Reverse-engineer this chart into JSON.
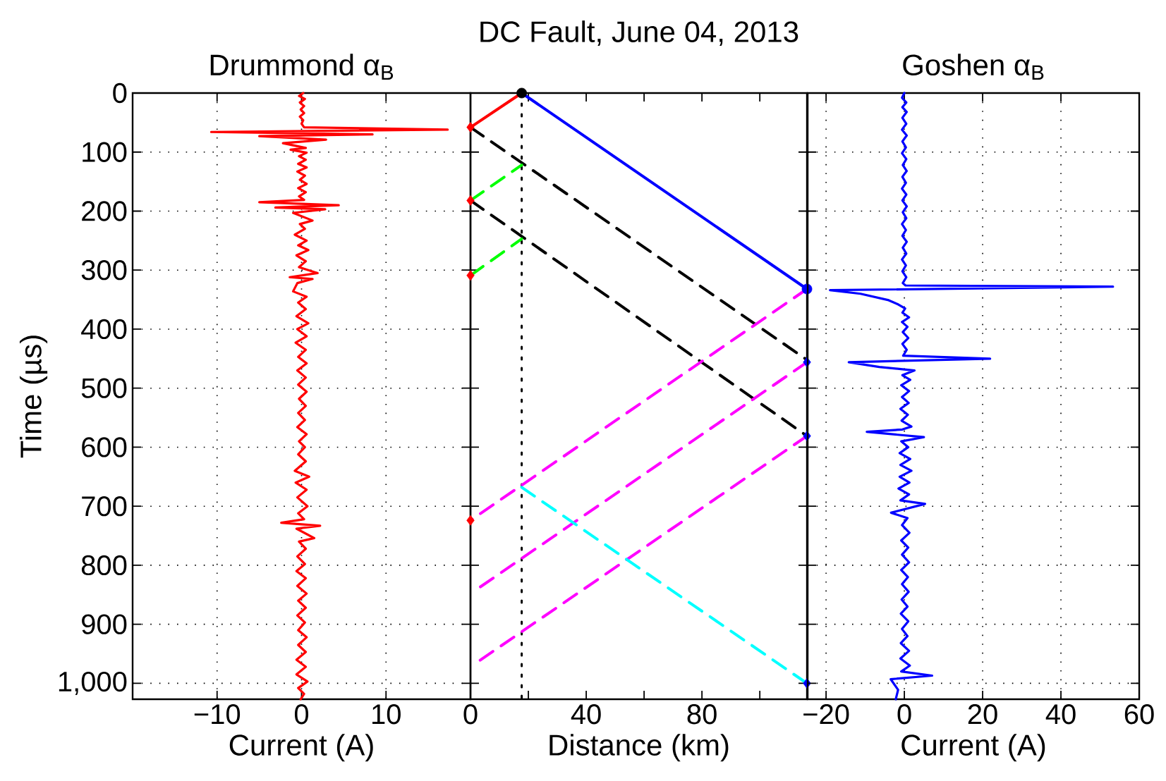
{
  "chart_data": [
    {
      "type": "line",
      "title": "Drummond α$_{B}$",
      "xlabel": "Current (A)",
      "ylabel": "Time (µs)",
      "xlim": [
        -20,
        20
      ],
      "xticks": [
        {
          "value": -10,
          "label": "−10"
        },
        0,
        10
      ],
      "ylim": [
        1027,
        0
      ],
      "yticks": [
        0,
        100,
        200,
        300,
        400,
        500,
        600,
        700,
        800,
        900,
        {
          "value": 1000,
          "label": "1,000"
        }
      ],
      "grid": true,
      "series": [
        {
          "color": "#ff0000",
          "x": [
            0.2,
            -0.3,
            0.4,
            -0.2,
            0.3,
            -0.1,
            0.3,
            -0.2,
            0.2,
            0,
            0.3,
            17.3,
            -10.7,
            8.4,
            -5,
            2.9,
            -2.2,
            0.5,
            -1.3,
            0.6,
            -0.3,
            0.5,
            -0.4,
            0.6,
            -0.5,
            0.4,
            -0.2,
            0.6,
            -0.4,
            0.5,
            -0.3,
            0.3,
            -5.0,
            4.4,
            -3.1,
            2.8,
            -1,
            1.3,
            -0.2,
            0.4,
            -0.8,
            0.6,
            -0.4,
            0.8,
            -0.6,
            0.5,
            -0.3,
            1.9,
            -1.4,
            1.3,
            -0.5,
            -1.0,
            0.6,
            -0.4,
            0.5,
            -0.6,
            0.8,
            -0.5,
            0.6,
            -0.7,
            0.5,
            -0.4,
            0.6,
            -0.5,
            0.5,
            -0.4,
            0.6,
            -0.3,
            0.5,
            -0.4,
            0.4,
            -0.5,
            0.6,
            -0.3,
            0.4,
            -0.4,
            0.5,
            -0.8,
            0.9,
            -0.7,
            0.6,
            -0.5,
            0.7,
            -0.4,
            0.3,
            -2.4,
            2.2,
            -0.6,
            1.5,
            -0.3,
            0.5,
            -0.5,
            0.4,
            -0.6,
            0.5,
            -0.5,
            0.6,
            -0.4,
            0.5,
            -0.5,
            0.4,
            -0.4,
            0.6,
            -0.4,
            0.5,
            -0.6,
            0.5,
            -0.6,
            0.7,
            -0.4,
            0.3,
            -0.1
          ],
          "values": [
            0,
            5,
            10,
            16,
            22,
            28,
            34,
            40,
            46,
            52,
            58,
            62,
            66,
            70,
            73,
            79,
            85,
            93,
            96,
            101,
            107,
            113,
            120,
            126,
            133,
            140,
            147,
            154,
            161,
            168,
            175,
            181,
            185,
            190,
            194,
            197,
            203,
            216,
            222,
            230,
            240,
            250,
            258,
            266,
            275,
            285,
            295,
            305,
            312,
            315,
            322,
            336,
            345,
            355,
            366,
            378,
            390,
            400,
            412,
            423,
            435,
            447,
            458,
            470,
            482,
            494,
            506,
            518,
            530,
            542,
            554,
            566,
            578,
            590,
            600,
            612,
            624,
            640,
            650,
            660,
            672,
            685,
            700,
            712,
            722,
            728,
            733,
            738,
            754,
            760,
            772,
            785,
            798,
            810,
            822,
            835,
            848,
            860,
            872,
            885,
            897,
            910,
            922,
            935,
            947,
            960,
            972,
            985,
            997,
            1008,
            1018,
            1027
          ]
        }
      ]
    },
    {
      "type": "line",
      "title": "DC Fault, June 04, 2013",
      "xlabel": "Distance (km)",
      "xlim": [
        0,
        116.3
      ],
      "xticks": [
        0,
        {
          "value": 20,
          "label": null
        },
        40,
        {
          "value": 60,
          "label": null
        },
        80,
        {
          "value": 100,
          "label": null
        }
      ],
      "ylim": [
        1027,
        0
      ],
      "yticks": [
        0,
        100,
        200,
        300,
        400,
        500,
        600,
        700,
        800,
        900,
        1000
      ],
      "tick_labels": "x",
      "ref_lines": [
        {
          "axis": "x",
          "value": 17.7,
          "color": "#000000",
          "line_style": "dotted"
        }
      ],
      "series": [
        {
          "color": "#ff0000",
          "line_style": "solid",
          "x": [
            17.7,
            0
          ],
          "values": [
            0,
            58
          ]
        },
        {
          "color": "#0000ff",
          "line_style": "solid",
          "x": [
            17.7,
            116.3
          ],
          "values": [
            0,
            332
          ]
        },
        {
          "color": "#000000",
          "line_style": "dashed",
          "x": [
            0,
            116.3
          ],
          "values": [
            58,
            452
          ]
        },
        {
          "color": "#00ff00",
          "line_style": "dashed",
          "x": [
            0,
            17.7
          ],
          "values": [
            182,
            122
          ]
        },
        {
          "color": "#000000",
          "line_style": "dashed",
          "x": [
            0,
            116.3
          ],
          "values": [
            182,
            581
          ]
        },
        {
          "color": "#00ff00",
          "line_style": "dashed",
          "x": [
            0,
            17.7
          ],
          "values": [
            309,
            247
          ]
        },
        {
          "color": "#ff00ff",
          "line_style": "dashed",
          "x": [
            116.3,
            0
          ],
          "values": [
            332,
            724
          ]
        },
        {
          "color": "#ff00ff",
          "line_style": "dashed",
          "x": [
            116.3,
            3
          ],
          "values": [
            456,
            838
          ]
        },
        {
          "color": "#ff00ff",
          "line_style": "dashed",
          "x": [
            116.3,
            3
          ],
          "values": [
            581,
            962
          ]
        },
        {
          "color": "#00ffff",
          "line_style": "dashed",
          "x": [
            17.7,
            116.3
          ],
          "values": [
            668,
            1000
          ]
        },
        {
          "type": "scatter",
          "marker": "circle",
          "color": "#000000",
          "x": [
            17.7
          ],
          "values": [
            0
          ]
        },
        {
          "type": "scatter",
          "marker": "circle",
          "color": "#0000ff",
          "x": [
            116.3
          ],
          "values": [
            332
          ]
        },
        {
          "type": "scatter",
          "marker": "diamond",
          "color": "#0000ff",
          "x": [
            116.3,
            116.3,
            116.3
          ],
          "values": [
            456,
            581,
            1000
          ]
        },
        {
          "type": "scatter",
          "marker": "diamond",
          "color": "#ff0000",
          "x": [
            0,
            0,
            0,
            0
          ],
          "values": [
            58,
            182,
            309,
            724
          ]
        }
      ]
    },
    {
      "type": "line",
      "title": "Goshen α$_{B}$",
      "xlabel": "Current (A)",
      "xlim": [
        -24.7,
        60
      ],
      "xticks": [
        {
          "value": -20,
          "label": "−20"
        },
        0,
        20,
        40,
        60
      ],
      "ylim": [
        1027,
        0
      ],
      "yticks": [
        0,
        100,
        200,
        300,
        400,
        500,
        600,
        700,
        800,
        900,
        1000
      ],
      "grid": true,
      "tick_labels": "x",
      "series": [
        {
          "color": "#0000ff",
          "x": [
            0,
            -0.6,
            0.5,
            -0.5,
            0.6,
            -0.5,
            0.5,
            -0.6,
            0.6,
            -0.5,
            0.4,
            -0.6,
            0.5,
            -0.4,
            0.6,
            -0.5,
            0.4,
            -0.6,
            0.5,
            -0.5,
            0.6,
            -0.4,
            0.5,
            -0.6,
            0.4,
            -0.5,
            0.6,
            -0.4,
            0.5,
            -0.6,
            0.4,
            -0.5,
            0.5,
            -0.4,
            0.3,
            53.3,
            -19,
            -11.2,
            -4,
            -1.6,
            0.2,
            -0.5,
            1.2,
            -0.6,
            0.8,
            -0.4,
            1.0,
            -0.5,
            0.6,
            -0.3,
            21.9,
            -14.2,
            -6.4,
            2.6,
            -0.5,
            1.5,
            -0.8,
            1.2,
            -0.6,
            1.1,
            -1.0,
            0.9,
            -0.7,
            1.8,
            -0.5,
            -9.6,
            5.0,
            -0.8,
            1.0,
            -1.2,
            1.5,
            -1.0,
            1.8,
            -1.2,
            1.3,
            -1.5,
            1.2,
            -1.0,
            5.3,
            -3.4,
            0.8,
            -0.6,
            1.3,
            -0.8,
            1.0,
            -0.6,
            1.2,
            -0.8,
            0.9,
            -0.6,
            1.1,
            -0.7,
            0.8,
            -0.9,
            1.0,
            -0.6,
            0.8,
            -0.9,
            1.2,
            -1.0,
            1.4,
            -0.8,
            7.1,
            -3.5,
            -1.6,
            -2.2
          ],
          "values": [
            0,
            8,
            16,
            24,
            32,
            42,
            52,
            62,
            72,
            82,
            92,
            102,
            112,
            122,
            132,
            142,
            152,
            162,
            172,
            182,
            192,
            202,
            212,
            222,
            232,
            242,
            252,
            262,
            272,
            282,
            292,
            302,
            312,
            322,
            326,
            328,
            334,
            340,
            351,
            358,
            365,
            372,
            380,
            388,
            396,
            405,
            415,
            425,
            435,
            445,
            450,
            456,
            464,
            470,
            478,
            486,
            495,
            505,
            515,
            525,
            535,
            545,
            555,
            565,
            570,
            574,
            583,
            590,
            600,
            610,
            620,
            630,
            640,
            650,
            660,
            670,
            680,
            690,
            696,
            711,
            720,
            732,
            745,
            758,
            770,
            782,
            795,
            808,
            820,
            832,
            845,
            858,
            870,
            882,
            895,
            908,
            920,
            932,
            945,
            958,
            970,
            980,
            987,
            993,
            1011,
            1027
          ]
        }
      ]
    }
  ]
}
